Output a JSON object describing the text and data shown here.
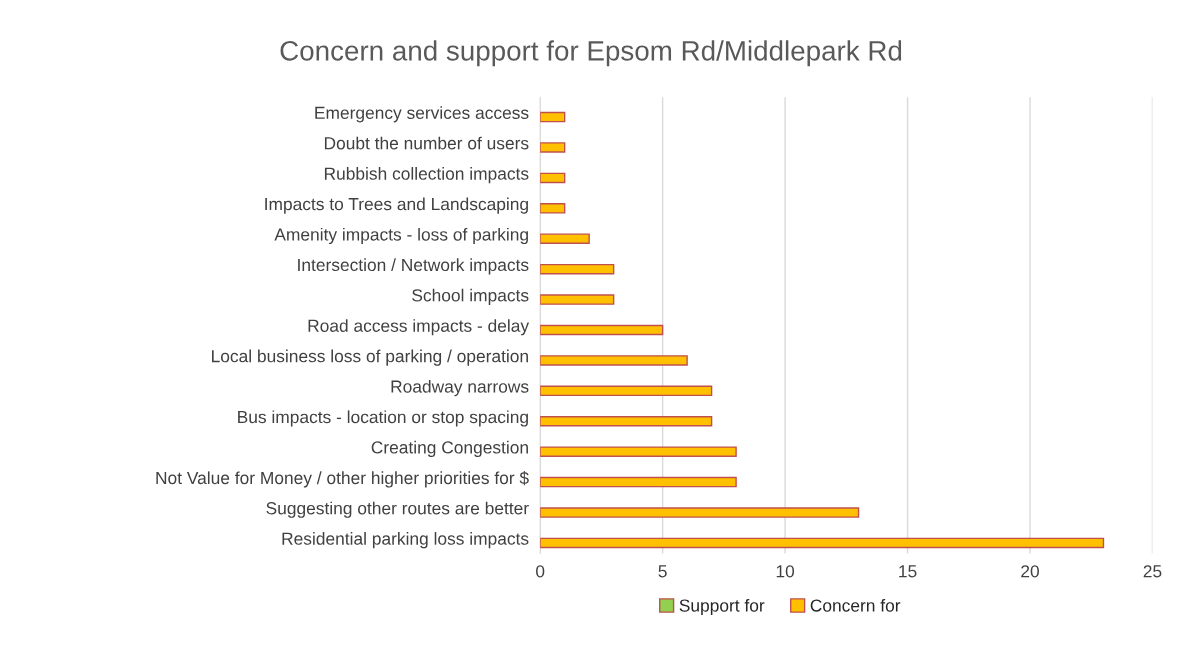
{
  "chart_data": {
    "type": "bar",
    "orientation": "horizontal",
    "title": "Concern and support for Epsom Rd/Middlepark Rd",
    "categories": [
      "Emergency services access",
      "Doubt the number of users",
      "Rubbish collection impacts",
      "Impacts to Trees and Landscaping",
      "Amenity impacts - loss of parking",
      "Intersection / Network impacts",
      "School impacts",
      "Road access impacts - delay",
      "Local business loss of parking / operation",
      "Roadway narrows",
      "Bus impacts - location or stop spacing",
      "Creating Congestion",
      "Not Value for Money / other higher priorities for $",
      "Suggesting other routes are better",
      "Residential parking loss impacts"
    ],
    "series": [
      {
        "name": "Support for",
        "color": "#92d050",
        "values": [
          null,
          null,
          null,
          null,
          null,
          null,
          null,
          null,
          null,
          null,
          null,
          null,
          null,
          null,
          null
        ]
      },
      {
        "name": "Concern for",
        "color": "#ffc000",
        "values": [
          1,
          1,
          1,
          1,
          2,
          3,
          3,
          5,
          6,
          7,
          7,
          8,
          8,
          13,
          23
        ]
      }
    ],
    "xlim": [
      0,
      25
    ],
    "xticks": [
      0,
      5,
      10,
      15,
      20,
      25
    ],
    "grid": "x",
    "legend": "bottom"
  }
}
